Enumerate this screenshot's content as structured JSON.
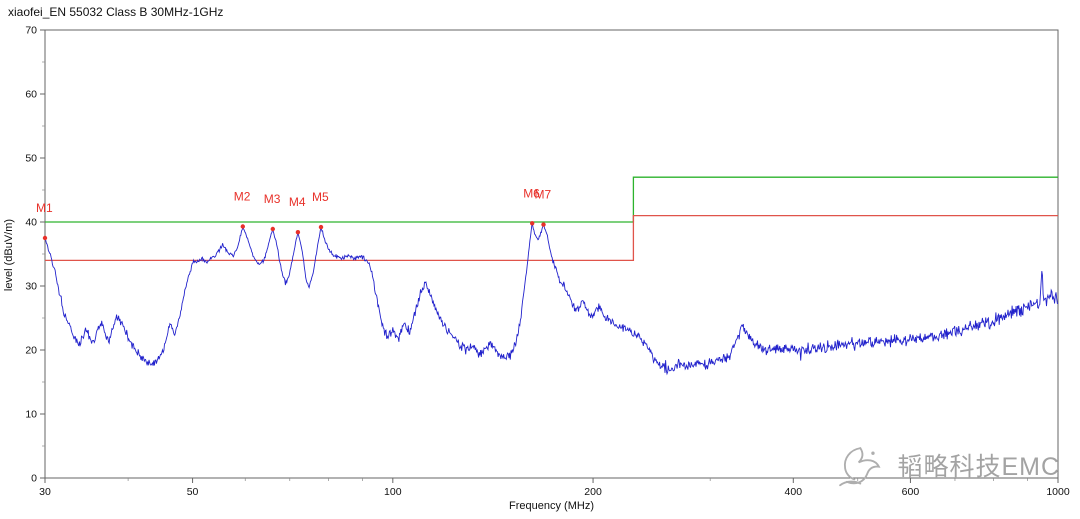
{
  "watermark": {
    "text": "韬略科技EMC",
    "color": "#a3a3a3"
  },
  "chart_data": {
    "type": "line",
    "title": "xiaofei_EN 55032 Class B 30MHz-1GHz",
    "xlabel": "Frequency (MHz)",
    "ylabel": "level (dBuV/m)",
    "x_scale": "log",
    "xlim": [
      30,
      1000
    ],
    "ylim": [
      0,
      70
    ],
    "x_ticks": [
      30,
      50,
      100,
      200,
      400,
      600,
      1000
    ],
    "x_minor_ticks": [
      40,
      60,
      70,
      80,
      90,
      300,
      500,
      700,
      800,
      900
    ],
    "y_ticks": [
      0,
      10,
      20,
      30,
      40,
      50,
      60,
      70
    ],
    "grid": false,
    "legend": "none",
    "colors": {
      "trace": "#2222cc",
      "limit_qp": "#2db32d",
      "limit_margin": "#e0544a",
      "marker": "#e8312a",
      "axis": "#666666"
    },
    "limit_lines": [
      {
        "name": "EN 55032 Class B QP limit",
        "color": "#2db32d",
        "points": [
          [
            30,
            40
          ],
          [
            230,
            40
          ],
          [
            230,
            47
          ],
          [
            1000,
            47
          ]
        ]
      },
      {
        "name": "margin line (limit - 6 dB)",
        "color": "#e0544a",
        "points": [
          [
            30,
            34
          ],
          [
            230,
            34
          ],
          [
            230,
            41
          ],
          [
            1000,
            41
          ]
        ]
      }
    ],
    "series": [
      {
        "name": "EMI scan trace",
        "color": "#2222cc",
        "points": [
          [
            30,
            37.5,
            0.15
          ],
          [
            30.4,
            35.5,
            0.3
          ],
          [
            31,
            32.5,
            0.4
          ],
          [
            32,
            26,
            0.45
          ],
          [
            33,
            22.5,
            0.45
          ],
          [
            33.8,
            20.8,
            0.45
          ],
          [
            34.6,
            23.3,
            0.45
          ],
          [
            35.4,
            21,
            0.45
          ],
          [
            36.4,
            24.3,
            0.45
          ],
          [
            37.4,
            21.4,
            0.45
          ],
          [
            38.4,
            25.3,
            0.45
          ],
          [
            39.4,
            23.6,
            0.45
          ],
          [
            40.4,
            21,
            0.45
          ],
          [
            41.4,
            19.4,
            0.45
          ],
          [
            42.4,
            18.2,
            0.4
          ],
          [
            43.4,
            17.6,
            0.4
          ],
          [
            44.4,
            18.4,
            0.4
          ],
          [
            45.4,
            20.6,
            0.4
          ],
          [
            46.2,
            24.3,
            0.35
          ],
          [
            47,
            22.2,
            0.35
          ],
          [
            48,
            26,
            0.3
          ],
          [
            49,
            30.5,
            0.3
          ],
          [
            50,
            33.6,
            0.3
          ],
          [
            51.5,
            34.2,
            0.3
          ],
          [
            53,
            33.9,
            0.3
          ],
          [
            54.5,
            35.1,
            0.25
          ],
          [
            55.5,
            36.6,
            0.25
          ],
          [
            56.5,
            35.2,
            0.25
          ],
          [
            57.5,
            34.7,
            0.25
          ],
          [
            58.4,
            36,
            0.2
          ],
          [
            59.5,
            39.3,
            0.15
          ],
          [
            60.5,
            37.2,
            0.2
          ],
          [
            61.8,
            34.6,
            0.25
          ],
          [
            63,
            33.3,
            0.25
          ],
          [
            64.2,
            34.3,
            0.25
          ],
          [
            65.2,
            37,
            0.2
          ],
          [
            66,
            38.9,
            0.15
          ],
          [
            67,
            36.2,
            0.2
          ],
          [
            68,
            32.4,
            0.25
          ],
          [
            69,
            30.3,
            0.25
          ],
          [
            70,
            32.2,
            0.25
          ],
          [
            71,
            35.3,
            0.2
          ],
          [
            72,
            38.4,
            0.15
          ],
          [
            73,
            35.8,
            0.2
          ],
          [
            74,
            31.3,
            0.25
          ],
          [
            74.8,
            29.9,
            0.25
          ],
          [
            75.8,
            31.8,
            0.25
          ],
          [
            76.8,
            35.2,
            0.2
          ],
          [
            78,
            39.2,
            0.15
          ],
          [
            79.2,
            36.8,
            0.2
          ],
          [
            80.4,
            35.4,
            0.25
          ],
          [
            82,
            34.8,
            0.3
          ],
          [
            84,
            34.4,
            0.3
          ],
          [
            86,
            34.7,
            0.3
          ],
          [
            88,
            34.3,
            0.3
          ],
          [
            90,
            34.6,
            0.3
          ],
          [
            92,
            33.6,
            0.35
          ],
          [
            93.5,
            31,
            0.45
          ],
          [
            95,
            27,
            0.5
          ],
          [
            96.5,
            23.8,
            0.55
          ],
          [
            98,
            22,
            0.55
          ],
          [
            100,
            23.2,
            0.55
          ],
          [
            102,
            21.9,
            0.55
          ],
          [
            104,
            24.2,
            0.55
          ],
          [
            106,
            22.9,
            0.55
          ],
          [
            108,
            25.6,
            0.5
          ],
          [
            110,
            28.8,
            0.45
          ],
          [
            112,
            30.3,
            0.4
          ],
          [
            114,
            28.6,
            0.45
          ],
          [
            117,
            25.6,
            0.5
          ],
          [
            120,
            23.6,
            0.55
          ],
          [
            123,
            22.3,
            0.55
          ],
          [
            126,
            20.9,
            0.55
          ],
          [
            129,
            19.9,
            0.55
          ],
          [
            132,
            20.7,
            0.55
          ],
          [
            135,
            19.3,
            0.55
          ],
          [
            138,
            20.3,
            0.55
          ],
          [
            141,
            21.1,
            0.55
          ],
          [
            144,
            19.7,
            0.55
          ],
          [
            147,
            18.7,
            0.55
          ],
          [
            150,
            19.1,
            0.5
          ],
          [
            153,
            20.9,
            0.5
          ],
          [
            155,
            23.8,
            0.45
          ],
          [
            157,
            27.8,
            0.4
          ],
          [
            159,
            32.8,
            0.3
          ],
          [
            160.5,
            36.4,
            0.2
          ],
          [
            162,
            39.8,
            0.12
          ],
          [
            163.5,
            38.1,
            0.2
          ],
          [
            165,
            37.1,
            0.2
          ],
          [
            166.6,
            38,
            0.18
          ],
          [
            168.5,
            39.6,
            0.12
          ],
          [
            170.5,
            38.2,
            0.2
          ],
          [
            172,
            36,
            0.25
          ],
          [
            174,
            34,
            0.3
          ],
          [
            176,
            32.4,
            0.35
          ],
          [
            178,
            31.1,
            0.4
          ],
          [
            180.5,
            30.4,
            0.4
          ],
          [
            183,
            29,
            0.45
          ],
          [
            186,
            27.4,
            0.5
          ],
          [
            188.5,
            26.2,
            0.5
          ],
          [
            191,
            27,
            0.5
          ],
          [
            193.5,
            27.7,
            0.5
          ],
          [
            196,
            26,
            0.5
          ],
          [
            199,
            25,
            0.5
          ],
          [
            202,
            26.2,
            0.5
          ],
          [
            205,
            26.9,
            0.5
          ],
          [
            208,
            25.4,
            0.55
          ],
          [
            212,
            24.5,
            0.55
          ],
          [
            217,
            24,
            0.55
          ],
          [
            222,
            23.5,
            0.55
          ],
          [
            228,
            23,
            0.55
          ],
          [
            234,
            22.1,
            0.6
          ],
          [
            240,
            21,
            0.6
          ],
          [
            246,
            19,
            0.6
          ],
          [
            252,
            17.5,
            0.6
          ],
          [
            258,
            16.9,
            0.6
          ],
          [
            264,
            17.4,
            0.6
          ],
          [
            271,
            18,
            0.6
          ],
          [
            279,
            17.5,
            0.6
          ],
          [
            287,
            18.2,
            0.6
          ],
          [
            295,
            17.8,
            0.6
          ],
          [
            304,
            18.1,
            0.6
          ],
          [
            313,
            18.4,
            0.6
          ],
          [
            322,
            19.3,
            0.6
          ],
          [
            329,
            21.6,
            0.55
          ],
          [
            335,
            23.4,
            0.55
          ],
          [
            341,
            22.9,
            0.55
          ],
          [
            349,
            21.2,
            0.6
          ],
          [
            358,
            20.3,
            0.6
          ],
          [
            370,
            19.9,
            0.65
          ],
          [
            382,
            20.1,
            0.65
          ],
          [
            395,
            20.2,
            0.65
          ],
          [
            410,
            20.1,
            0.65
          ],
          [
            430,
            20.4,
            0.65
          ],
          [
            455,
            20.6,
            0.65
          ],
          [
            480,
            20.8,
            0.65
          ],
          [
            505,
            21,
            0.65
          ],
          [
            530,
            21.2,
            0.65
          ],
          [
            560,
            21.4,
            0.7
          ],
          [
            590,
            21.6,
            0.7
          ],
          [
            620,
            21.9,
            0.7
          ],
          [
            650,
            22.2,
            0.7
          ],
          [
            685,
            22.6,
            0.75
          ],
          [
            720,
            23.1,
            0.75
          ],
          [
            755,
            23.7,
            0.8
          ],
          [
            790,
            24.3,
            0.8
          ],
          [
            825,
            25.1,
            0.8
          ],
          [
            860,
            25.9,
            0.85
          ],
          [
            895,
            26.6,
            0.85
          ],
          [
            925,
            27.1,
            0.9
          ],
          [
            940,
            27.3,
            0.9
          ],
          [
            946,
            33,
            0.3
          ],
          [
            951,
            27.5,
            0.9
          ],
          [
            965,
            27.9,
            0.95
          ],
          [
            980,
            28.2,
            0.95
          ],
          [
            1000,
            27.8,
            1
          ]
        ]
      }
    ],
    "markers": [
      {
        "name": "M1",
        "freq_mhz": 30,
        "level": 37.5
      },
      {
        "name": "M2",
        "freq_mhz": 59.5,
        "level": 39.3
      },
      {
        "name": "M3",
        "freq_mhz": 66,
        "level": 38.9
      },
      {
        "name": "M4",
        "freq_mhz": 72,
        "level": 38.4
      },
      {
        "name": "M5",
        "freq_mhz": 78,
        "level": 39.2
      },
      {
        "name": "M6",
        "freq_mhz": 162,
        "level": 39.8
      },
      {
        "name": "M7",
        "freq_mhz": 168.5,
        "level": 39.6
      }
    ]
  }
}
